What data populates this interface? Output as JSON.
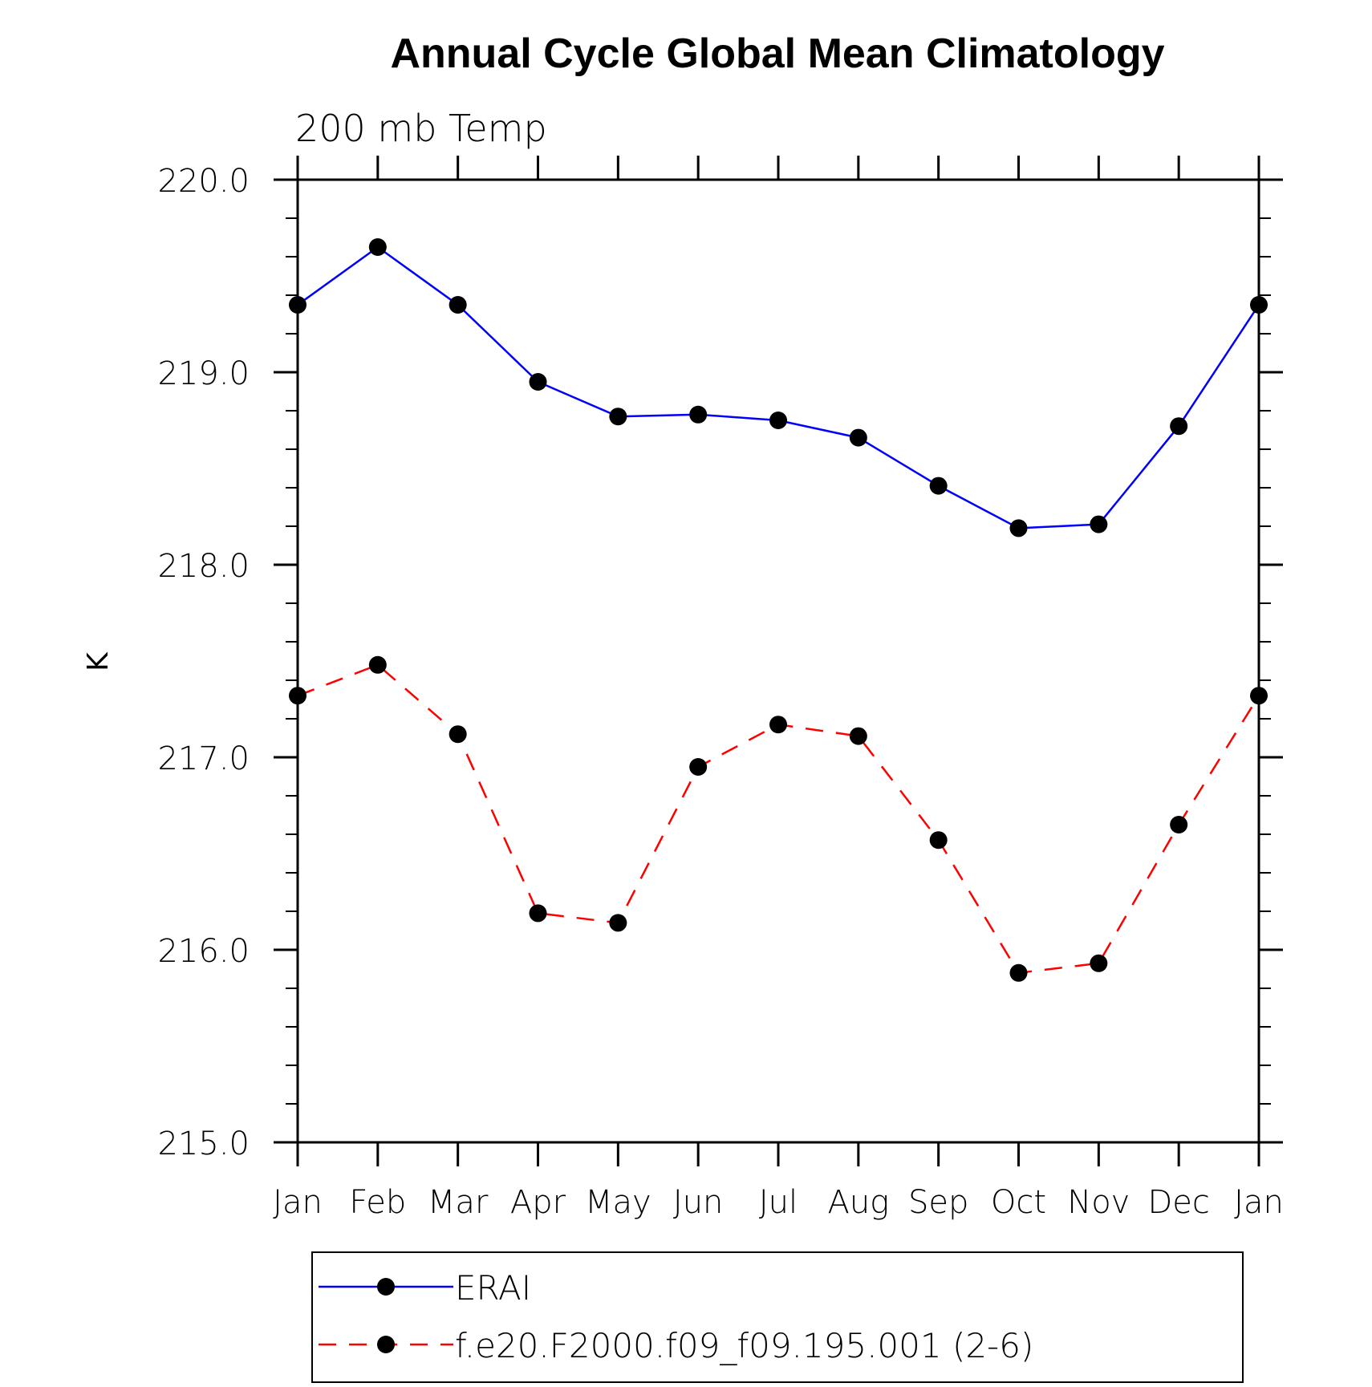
{
  "chart_data": {
    "type": "line",
    "title": "Annual Cycle Global Mean Climatology",
    "subtitle": "200 mb Temp",
    "xlabel": "",
    "ylabel": "K",
    "categories": [
      "Jan",
      "Feb",
      "Mar",
      "Apr",
      "May",
      "Jun",
      "Jul",
      "Aug",
      "Sep",
      "Oct",
      "Nov",
      "Dec",
      "Jan"
    ],
    "ylim": [
      215.0,
      220.0
    ],
    "yticks": [
      "215.0",
      "216.0",
      "217.0",
      "218.0",
      "219.0",
      "220.0"
    ],
    "grid": false,
    "legend_placement": "bottom",
    "series": [
      {
        "name": "ERAI",
        "color": "#0000ff",
        "line_style": "solid",
        "marker": "filled-circle",
        "values": [
          219.35,
          219.65,
          219.35,
          218.95,
          218.77,
          218.78,
          218.75,
          218.66,
          218.41,
          218.19,
          218.21,
          218.72,
          219.35
        ]
      },
      {
        "name": "f.e20.F2000.f09_f09.195.001 (2-6)",
        "color": "#ff0000",
        "line_style": "dashed",
        "marker": "filled-circle",
        "values": [
          217.32,
          217.48,
          217.12,
          216.19,
          216.14,
          216.95,
          217.17,
          217.11,
          216.57,
          215.88,
          215.93,
          216.65,
          217.32
        ]
      }
    ]
  }
}
